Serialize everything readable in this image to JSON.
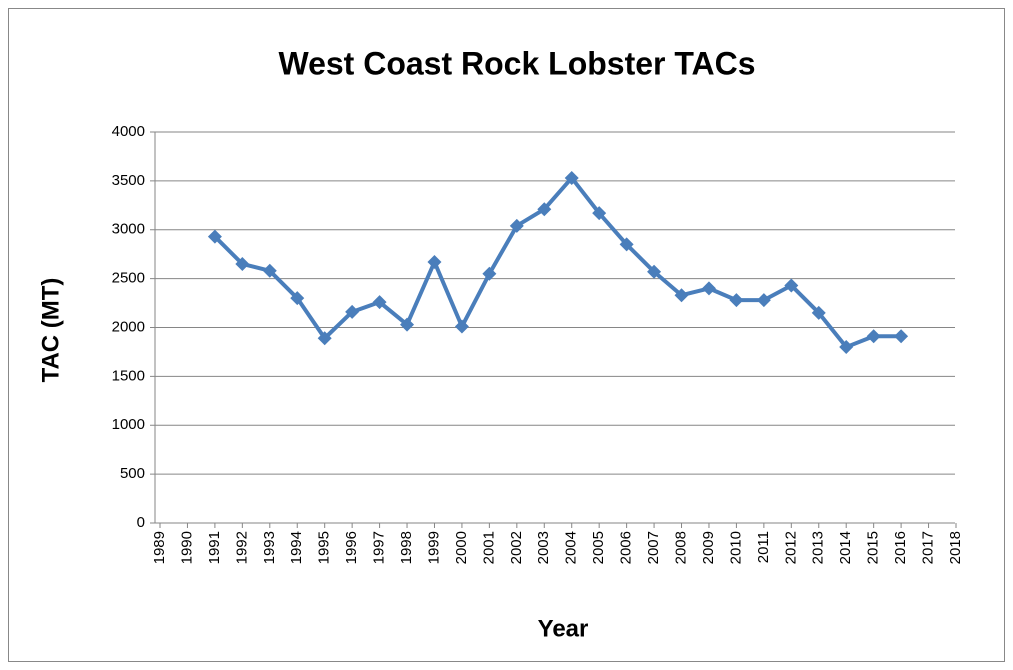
{
  "chart_data": {
    "type": "line",
    "title": "West Coast Rock Lobster TACs",
    "x_label": "Year",
    "y_label": "TAC (MT)",
    "x": [
      1991,
      1992,
      1993,
      1994,
      1995,
      1996,
      1997,
      1998,
      1999,
      2000,
      2001,
      2002,
      2003,
      2004,
      2005,
      2006,
      2007,
      2008,
      2009,
      2010,
      2011,
      2012,
      2013,
      2014,
      2015,
      2016
    ],
    "values": [
      2930,
      2650,
      2580,
      2300,
      1890,
      2160,
      2260,
      2030,
      2670,
      2010,
      2550,
      3040,
      3210,
      3530,
      3170,
      2850,
      2570,
      2330,
      2400,
      2280,
      2280,
      2430,
      2150,
      1800,
      1910,
      1910
    ],
    "color": "#4a7ebb",
    "xlim": [
      1989,
      2018
    ],
    "xticks": [
      1989,
      1990,
      1991,
      1992,
      1993,
      1994,
      1995,
      1996,
      1997,
      1998,
      1999,
      2000,
      2001,
      2002,
      2003,
      2004,
      2005,
      2006,
      2007,
      2008,
      2009,
      2010,
      2011,
      2012,
      2013,
      2014,
      2015,
      2016,
      2017,
      2018
    ],
    "ylim": [
      0,
      4000
    ],
    "yticks": [
      0,
      500,
      1000,
      1500,
      2000,
      2500,
      3000,
      3500,
      4000
    ],
    "grid": true
  }
}
